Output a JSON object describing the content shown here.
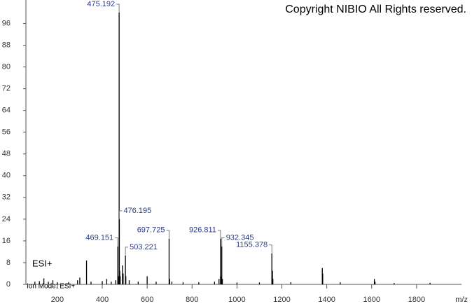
{
  "chart_data": {
    "type": "stem",
    "copyright": "Copyright NIBIO All Rights reserved.",
    "mode_label": "ESI+",
    "ion_mode": "Ion Mode: ESI+",
    "x_label": "m/z",
    "xlim": [
      60,
      2000
    ],
    "xticks": [
      200,
      400,
      600,
      800,
      1000,
      1200,
      1400,
      1600,
      1800
    ],
    "ylim": [
      0,
      100
    ],
    "yticks": [
      0,
      8,
      16,
      24,
      32,
      40,
      48,
      56,
      64,
      72,
      80,
      88,
      96
    ],
    "series": [
      {
        "color": "#000000",
        "show_labels": true,
        "x": [
          469.151,
          475.192,
          476.195,
          503.221,
          697.725,
          926.811,
          932.345,
          1155.378
        ],
        "values": [
          14,
          100,
          24,
          10.6,
          16.8,
          16.8,
          14,
          11.4
        ]
      },
      {
        "color": "#000000",
        "show_labels": false,
        "x": [
          100,
          120,
          140,
          160,
          180,
          200,
          250,
          290,
          300,
          330,
          350,
          400,
          420,
          440,
          460,
          471,
          478,
          480,
          490,
          493,
          505,
          520,
          560,
          600,
          640,
          700,
          710,
          760,
          830,
          900,
          920,
          929,
          935,
          1000,
          1100,
          1158,
          1160,
          1240,
          1380,
          1382,
          1460,
          1612,
          1615,
          1700,
          1860
        ],
        "values": [
          1,
          1.2,
          2.2,
          1,
          1.5,
          0.8,
          0.8,
          1.5,
          2.5,
          8.8,
          1,
          1.2,
          2,
          1,
          1.5,
          3,
          5,
          3,
          7,
          4,
          3,
          1.5,
          1,
          3,
          1,
          2,
          1,
          0.8,
          0.8,
          1,
          2,
          3,
          2,
          0.7,
          0.7,
          5,
          2,
          0.8,
          6,
          4,
          0.8,
          2,
          1,
          0.5,
          0.6
        ]
      }
    ]
  }
}
